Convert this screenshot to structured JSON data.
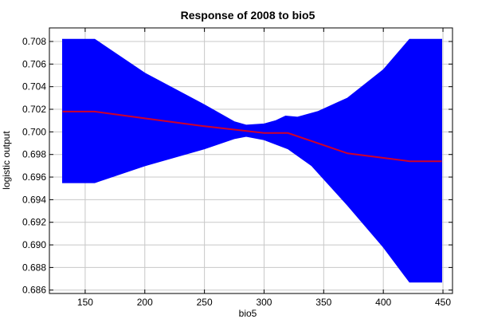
{
  "chart_data": {
    "type": "area",
    "title": "Response of 2008 to bio5",
    "xlabel": "bio5",
    "ylabel": "logistic output",
    "xlim": [
      120,
      458
    ],
    "ylim": [
      0.6857,
      0.7092
    ],
    "x_ticks": [
      "150",
      "200",
      "250",
      "300",
      "350",
      "400",
      "450"
    ],
    "y_ticks": [
      "0.686",
      "0.688",
      "0.690",
      "0.692",
      "0.694",
      "0.696",
      "0.698",
      "0.700",
      "0.702",
      "0.704",
      "0.706",
      "0.708"
    ],
    "grid": true,
    "series": [
      {
        "kind": "band",
        "color": "#0000ff",
        "upper": [
          [
            131,
            0.7082
          ],
          [
            158,
            0.7082
          ],
          [
            200,
            0.7052
          ],
          [
            250,
            0.7024
          ],
          [
            275,
            0.7009
          ],
          [
            285,
            0.7006
          ],
          [
            300,
            0.7007
          ],
          [
            310,
            0.701
          ],
          [
            318,
            0.7014
          ],
          [
            328,
            0.7013
          ],
          [
            345,
            0.7018
          ],
          [
            370,
            0.703
          ],
          [
            400,
            0.7055
          ],
          [
            422,
            0.7082
          ],
          [
            449,
            0.7082
          ]
        ],
        "lower": [
          [
            131,
            0.6955
          ],
          [
            158,
            0.6955
          ],
          [
            200,
            0.697
          ],
          [
            250,
            0.6985
          ],
          [
            275,
            0.6994
          ],
          [
            285,
            0.6996
          ],
          [
            300,
            0.6993
          ],
          [
            320,
            0.6985
          ],
          [
            340,
            0.697
          ],
          [
            370,
            0.6935
          ],
          [
            400,
            0.6898
          ],
          [
            422,
            0.6867
          ],
          [
            449,
            0.6867
          ]
        ]
      },
      {
        "kind": "line",
        "color": "#d0002a",
        "points": [
          [
            131,
            0.7018
          ],
          [
            158,
            0.7018
          ],
          [
            200,
            0.7012
          ],
          [
            250,
            0.7005
          ],
          [
            300,
            0.6999
          ],
          [
            320,
            0.6999
          ],
          [
            370,
            0.6981
          ],
          [
            422,
            0.6974
          ],
          [
            449,
            0.6974
          ]
        ]
      }
    ]
  }
}
